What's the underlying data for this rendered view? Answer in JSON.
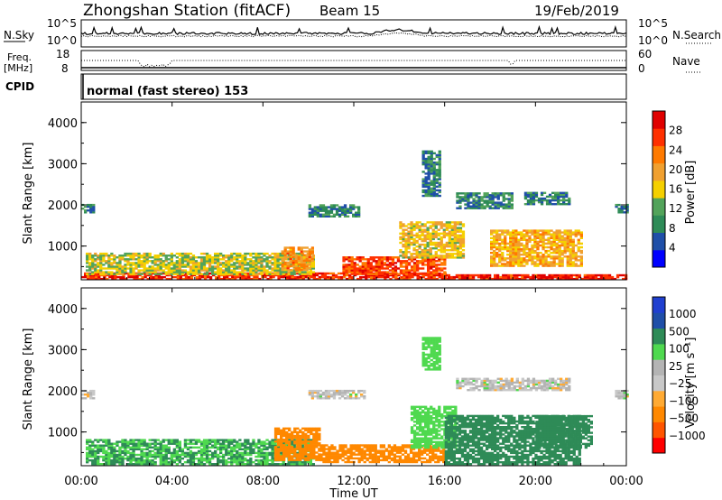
{
  "header": {
    "station": "Zhongshan Station (fitACF)",
    "beam": "Beam 15",
    "date": "19/Feb/2019"
  },
  "top_panel": {
    "left_label": "N.Sky",
    "left_ticks": [
      "10^5",
      "10^0"
    ],
    "right_ticks": [
      "10^5",
      "10^0"
    ],
    "right_label": "N.Search"
  },
  "freq_panel": {
    "left_label_1": "Freq.",
    "left_label_2": "[MHz]",
    "left_ticks": [
      "18",
      "8"
    ],
    "right_ticks": [
      "60",
      "0"
    ],
    "right_label": "Nave"
  },
  "cpid": {
    "label": "CPID",
    "mode": "normal (fast stereo) 153"
  },
  "colors": {
    "power": [
      "#0000ff",
      "#1f4fa8",
      "#2e8b57",
      "#52a35a",
      "#f5d000",
      "#f0a030",
      "#ff7a00",
      "#ff3000",
      "#e00000"
    ],
    "velocity": [
      "#ff0000",
      "#ff5500",
      "#ff8800",
      "#ffaa33",
      "#c8c8c8",
      "#b4b4b4",
      "#4fd94f",
      "#2e8b57",
      "#1f4fa8",
      "#2040d0"
    ],
    "ground_scatter": "#a0a0a0"
  },
  "chart_data": [
    {
      "type": "heatmap",
      "title": "Power",
      "ylabel": "Slant Range [km]",
      "xlabel": "Time UT",
      "x_ticks": [
        "00:00",
        "04:00",
        "08:00",
        "12:00",
        "16:00",
        "20:00",
        "00:00"
      ],
      "xlim_hours": [
        0,
        24
      ],
      "ylim": [
        180,
        4500
      ],
      "y_ticks": [
        1000,
        2000,
        3000,
        4000
      ],
      "colorbar": {
        "label": "Power [dB]",
        "ticks": [
          4,
          8,
          12,
          16,
          20,
          24,
          28
        ],
        "range": [
          0,
          30
        ]
      },
      "regions": [
        {
          "t0": 0.0,
          "t1": 16.0,
          "r0": 180,
          "r1": 320,
          "level": 26
        },
        {
          "t0": 16.0,
          "t1": 24.0,
          "r0": 180,
          "r1": 300,
          "level": 27
        },
        {
          "t0": 0.2,
          "t1": 10.2,
          "r0": 300,
          "r1": 800,
          "level": 14
        },
        {
          "t0": 8.8,
          "t1": 10.2,
          "r0": 400,
          "r1": 950,
          "level": 20
        },
        {
          "t0": 11.5,
          "t1": 16.0,
          "r0": 300,
          "r1": 750,
          "level": 24
        },
        {
          "t0": 14.0,
          "t1": 16.8,
          "r0": 700,
          "r1": 1600,
          "level": 16
        },
        {
          "t0": 18.0,
          "t1": 22.0,
          "r0": 500,
          "r1": 1400,
          "level": 18
        },
        {
          "t0": 10.0,
          "t1": 12.2,
          "r0": 1700,
          "r1": 2000,
          "level": 8
        },
        {
          "t0": 16.5,
          "t1": 19.0,
          "r0": 1900,
          "r1": 2300,
          "level": 8
        },
        {
          "t0": 19.5,
          "t1": 21.5,
          "r0": 2000,
          "r1": 2300,
          "level": 8
        },
        {
          "t0": 0.0,
          "t1": 0.6,
          "r0": 1800,
          "r1": 2000,
          "level": 8
        },
        {
          "t0": 15.0,
          "t1": 15.8,
          "r0": 2200,
          "r1": 3300,
          "level": 8
        },
        {
          "t0": 23.5,
          "t1": 24.0,
          "r0": 1800,
          "r1": 2000,
          "level": 8
        }
      ]
    },
    {
      "type": "heatmap",
      "title": "Velocity",
      "ylabel": "Slant Range [km]",
      "xlabel": "Time UT",
      "x_ticks": [
        "00:00",
        "04:00",
        "08:00",
        "12:00",
        "16:00",
        "20:00",
        "00:00"
      ],
      "xlim_hours": [
        0,
        24
      ],
      "ylim": [
        180,
        4500
      ],
      "y_ticks": [
        1000,
        2000,
        3000,
        4000
      ],
      "colorbar": {
        "label": "Velocity [m s⁻¹]",
        "ticks": [
          "1000",
          "500",
          "100",
          "25",
          "−25",
          "−100",
          "−500",
          "−1000"
        ]
      },
      "regions": [
        {
          "t0": 0.2,
          "t1": 10.2,
          "r0": 200,
          "r1": 800,
          "level": 100
        },
        {
          "t0": 8.5,
          "t1": 10.5,
          "r0": 300,
          "r1": 1100,
          "level": -300
        },
        {
          "t0": 10.5,
          "t1": 16.0,
          "r0": 250,
          "r1": 700,
          "level": -200
        },
        {
          "t0": 14.5,
          "t1": 16.5,
          "r0": 600,
          "r1": 1600,
          "level": 60
        },
        {
          "t0": 16.0,
          "t1": 22.0,
          "r0": 200,
          "r1": 1400,
          "level": 300
        },
        {
          "t0": 20.0,
          "t1": 22.5,
          "r0": 600,
          "r1": 1400,
          "level": 300
        },
        {
          "t0": 10.0,
          "t1": 12.5,
          "r0": 1800,
          "r1": 2000,
          "level": 0
        },
        {
          "t0": 16.5,
          "t1": 21.5,
          "r0": 2000,
          "r1": 2300,
          "level": 0
        },
        {
          "t0": 0.0,
          "t1": 0.6,
          "r0": 1800,
          "r1": 2000,
          "level": 0
        },
        {
          "t0": 15.0,
          "t1": 15.8,
          "r0": 2500,
          "r1": 3300,
          "level": 60
        },
        {
          "t0": 23.5,
          "t1": 24.0,
          "r0": 1800,
          "r1": 2000,
          "level": 0
        }
      ]
    }
  ]
}
